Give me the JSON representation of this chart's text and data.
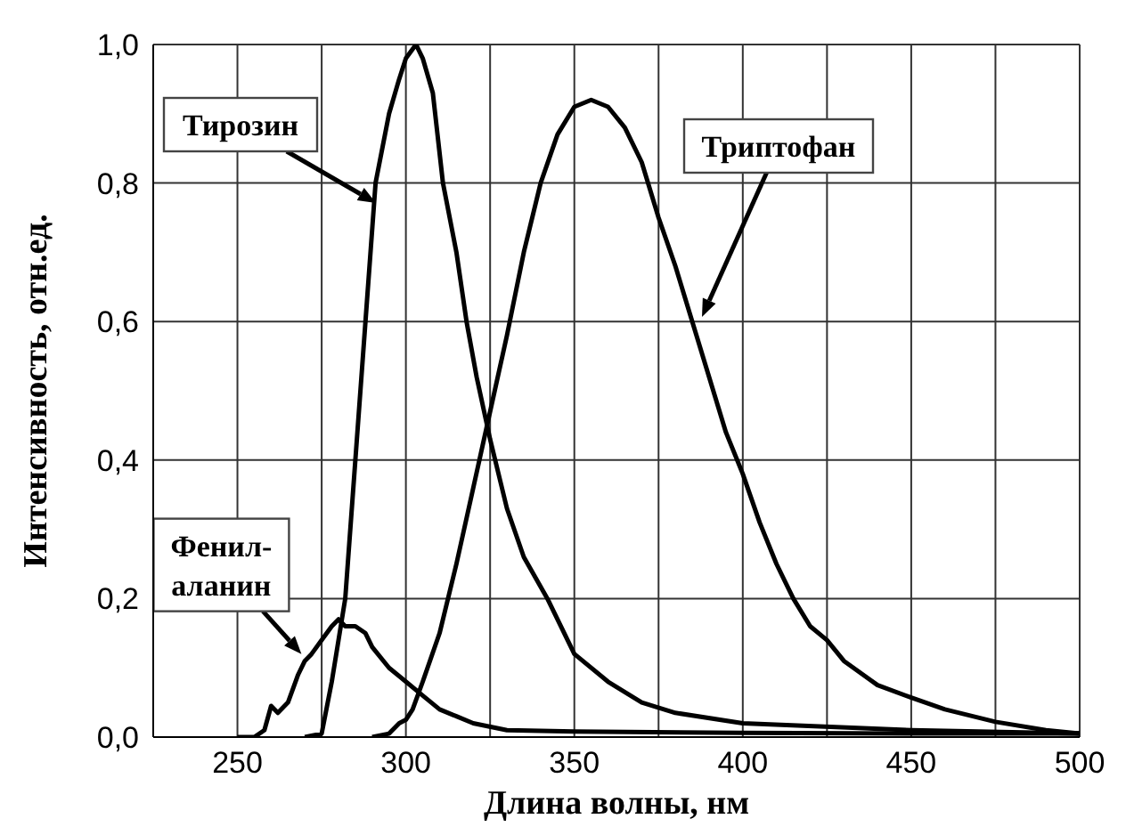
{
  "chart_data": {
    "type": "line",
    "xlabel": "Длина волны, нм",
    "ylabel": "Интенсивность, отн.ед.",
    "xlim": [
      225,
      500
    ],
    "ylim": [
      0,
      1
    ],
    "xticks": [
      {
        "value": 225,
        "label": null
      },
      250,
      {
        "value": 275,
        "label": null
      },
      300,
      {
        "value": 325,
        "label": null
      },
      350,
      {
        "value": 375,
        "label": null
      },
      400,
      {
        "value": 425,
        "label": null
      },
      450,
      {
        "value": 475,
        "label": null
      },
      500
    ],
    "yticks": [
      {
        "value": 0,
        "label": "0,0"
      },
      {
        "value": 0.2,
        "label": "0,2"
      },
      {
        "value": 0.4,
        "label": "0,4"
      },
      {
        "value": 0.6,
        "label": "0,6"
      },
      {
        "value": 0.8,
        "label": "0,8"
      },
      {
        "value": 1,
        "label": "1,0"
      }
    ],
    "grid": true,
    "legend": false,
    "marker": "none",
    "line_style": "solid",
    "series": [
      {
        "color": "#000000",
        "x": [
          250,
          255,
          258,
          260,
          262,
          265,
          268,
          270,
          272,
          275,
          278,
          280,
          282,
          285,
          288,
          290,
          295,
          300,
          305,
          310,
          315,
          320,
          330,
          350,
          400,
          450,
          500
        ],
        "values": [
          0,
          0,
          0.01,
          0.045,
          0.035,
          0.05,
          0.09,
          0.11,
          0.12,
          0.14,
          0.16,
          0.17,
          0.16,
          0.16,
          0.15,
          0.13,
          0.1,
          0.08,
          0.06,
          0.04,
          0.03,
          0.02,
          0.01,
          0.008,
          0.006,
          0.005,
          0.005
        ]
      },
      {
        "color": "#000000",
        "x": [
          270,
          275,
          278,
          280,
          282,
          285,
          288,
          291,
          295,
          298,
          300,
          303,
          305,
          308,
          311,
          315,
          318,
          321,
          325,
          330,
          335,
          342,
          350,
          360,
          370,
          380,
          400,
          450,
          500
        ],
        "values": [
          0,
          0.005,
          0.08,
          0.14,
          0.2,
          0.4,
          0.6,
          0.8,
          0.9,
          0.95,
          0.98,
          1.0,
          0.98,
          0.93,
          0.8,
          0.7,
          0.6,
          0.52,
          0.43,
          0.33,
          0.26,
          0.2,
          0.12,
          0.08,
          0.05,
          0.035,
          0.02,
          0.01,
          0.005
        ]
      },
      {
        "color": "#000000",
        "x": [
          290,
          295,
          298,
          300,
          302,
          305,
          310,
          315,
          320,
          325,
          330,
          335,
          340,
          345,
          350,
          355,
          360,
          365,
          370,
          375,
          380,
          385,
          390,
          395,
          400,
          405,
          410,
          415,
          420,
          425,
          430,
          440,
          450,
          460,
          475,
          490,
          500
        ],
        "values": [
          0,
          0.005,
          0.02,
          0.025,
          0.04,
          0.08,
          0.15,
          0.25,
          0.36,
          0.47,
          0.58,
          0.7,
          0.8,
          0.87,
          0.91,
          0.92,
          0.91,
          0.88,
          0.83,
          0.75,
          0.68,
          0.6,
          0.52,
          0.44,
          0.38,
          0.31,
          0.25,
          0.2,
          0.16,
          0.14,
          0.11,
          0.075,
          0.057,
          0.04,
          0.022,
          0.01,
          0.005
        ]
      }
    ],
    "annotations": [
      "Тирозин",
      "Триптофан",
      {
        "text": "Фенил-\nаланин",
        "x": 269,
        "y": 0.12
      }
    ]
  }
}
